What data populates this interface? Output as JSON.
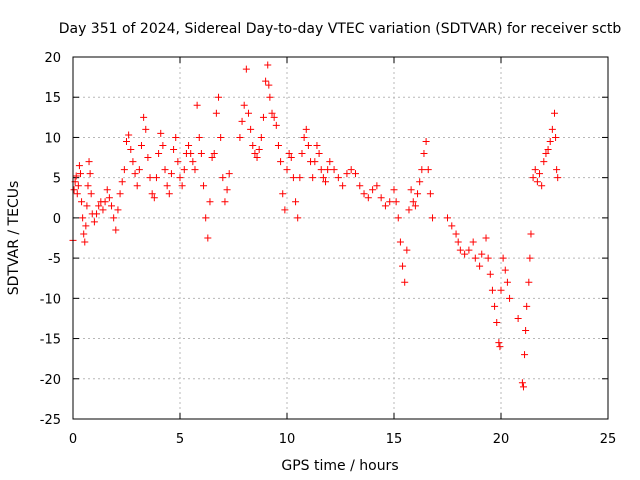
{
  "chart_data": {
    "type": "scatter",
    "title": "Day 351 of 2024, Sidereal Day-to-day VTEC variation (SDTVAR) for receiver sctb",
    "xlabel": "GPS time / hours",
    "ylabel": "SDTVAR / TECUs",
    "xlim": [
      0,
      25
    ],
    "ylim": [
      -25,
      20
    ],
    "xticks": [
      0,
      5,
      10,
      15,
      20,
      25
    ],
    "yticks": [
      -25,
      -20,
      -15,
      -10,
      -5,
      0,
      5,
      10,
      15,
      20
    ],
    "grid": true,
    "marker": "plus",
    "series_color": "#ff0000",
    "series": [
      {
        "name": "sctb",
        "points": [
          [
            0.0,
            -2.8
          ],
          [
            0.05,
            3.5
          ],
          [
            0.1,
            4.5
          ],
          [
            0.15,
            5.2
          ],
          [
            0.2,
            3.0
          ],
          [
            0.25,
            4.0
          ],
          [
            0.3,
            6.5
          ],
          [
            0.35,
            5.5
          ],
          [
            0.4,
            2.0
          ],
          [
            0.45,
            0.0
          ],
          [
            0.5,
            -2.0
          ],
          [
            0.55,
            -3.0
          ],
          [
            0.6,
            -1.0
          ],
          [
            0.65,
            1.5
          ],
          [
            0.7,
            4.0
          ],
          [
            0.75,
            7.0
          ],
          [
            0.8,
            5.5
          ],
          [
            0.85,
            3.0
          ],
          [
            0.9,
            0.5
          ],
          [
            1.0,
            -0.5
          ],
          [
            1.1,
            0.5
          ],
          [
            1.2,
            1.5
          ],
          [
            1.3,
            2.0
          ],
          [
            1.4,
            1.0
          ],
          [
            1.5,
            2.0
          ],
          [
            1.6,
            3.5
          ],
          [
            1.7,
            2.5
          ],
          [
            1.8,
            1.5
          ],
          [
            1.9,
            0.0
          ],
          [
            2.0,
            -1.5
          ],
          [
            2.1,
            1.0
          ],
          [
            2.2,
            3.0
          ],
          [
            2.3,
            4.5
          ],
          [
            2.4,
            6.0
          ],
          [
            2.5,
            9.5
          ],
          [
            2.6,
            10.3
          ],
          [
            2.7,
            8.5
          ],
          [
            2.8,
            7.0
          ],
          [
            2.9,
            5.5
          ],
          [
            3.0,
            4.0
          ],
          [
            3.1,
            6.0
          ],
          [
            3.2,
            9.0
          ],
          [
            3.3,
            12.5
          ],
          [
            3.4,
            11.0
          ],
          [
            3.5,
            7.5
          ],
          [
            3.6,
            5.0
          ],
          [
            3.7,
            3.0
          ],
          [
            3.8,
            2.5
          ],
          [
            3.9,
            5.0
          ],
          [
            4.0,
            8.0
          ],
          [
            4.1,
            10.5
          ],
          [
            4.2,
            9.0
          ],
          [
            4.3,
            6.0
          ],
          [
            4.4,
            4.0
          ],
          [
            4.5,
            3.0
          ],
          [
            4.6,
            5.5
          ],
          [
            4.7,
            8.5
          ],
          [
            4.8,
            10.0
          ],
          [
            4.9,
            7.0
          ],
          [
            5.0,
            5.0
          ],
          [
            5.1,
            4.0
          ],
          [
            5.2,
            6.0
          ],
          [
            5.3,
            8.0
          ],
          [
            5.4,
            9.0
          ],
          [
            5.5,
            8.0
          ],
          [
            5.6,
            7.0
          ],
          [
            5.7,
            6.0
          ],
          [
            5.8,
            14.0
          ],
          [
            5.9,
            10.0
          ],
          [
            6.0,
            8.0
          ],
          [
            6.1,
            4.0
          ],
          [
            6.2,
            0.0
          ],
          [
            6.3,
            -2.5
          ],
          [
            6.4,
            2.0
          ],
          [
            6.5,
            7.5
          ],
          [
            6.6,
            8.0
          ],
          [
            6.7,
            13.0
          ],
          [
            6.8,
            15.0
          ],
          [
            6.9,
            10.0
          ],
          [
            7.0,
            5.0
          ],
          [
            7.1,
            2.0
          ],
          [
            7.2,
            3.5
          ],
          [
            7.3,
            5.5
          ],
          [
            7.8,
            10.0
          ],
          [
            7.9,
            12.0
          ],
          [
            8.0,
            14.0
          ],
          [
            8.1,
            18.5
          ],
          [
            8.2,
            13.0
          ],
          [
            8.3,
            11.0
          ],
          [
            8.4,
            9.0
          ],
          [
            8.5,
            8.0
          ],
          [
            8.6,
            7.5
          ],
          [
            8.7,
            8.5
          ],
          [
            8.8,
            10.0
          ],
          [
            8.9,
            12.5
          ],
          [
            9.0,
            17.0
          ],
          [
            9.1,
            19.0
          ],
          [
            9.15,
            16.5
          ],
          [
            9.2,
            15.0
          ],
          [
            9.3,
            13.0
          ],
          [
            9.4,
            12.5
          ],
          [
            9.5,
            11.5
          ],
          [
            9.6,
            9.0
          ],
          [
            9.7,
            7.0
          ],
          [
            9.8,
            3.0
          ],
          [
            9.9,
            1.0
          ],
          [
            10.0,
            6.0
          ],
          [
            10.1,
            8.0
          ],
          [
            10.2,
            7.5
          ],
          [
            10.3,
            5.0
          ],
          [
            10.4,
            2.0
          ],
          [
            10.5,
            0.0
          ],
          [
            10.6,
            5.0
          ],
          [
            10.7,
            8.0
          ],
          [
            10.8,
            10.0
          ],
          [
            10.9,
            11.0
          ],
          [
            11.0,
            9.0
          ],
          [
            11.1,
            7.0
          ],
          [
            11.2,
            5.0
          ],
          [
            11.3,
            7.0
          ],
          [
            11.4,
            9.0
          ],
          [
            11.5,
            8.0
          ],
          [
            11.6,
            6.0
          ],
          [
            11.7,
            5.0
          ],
          [
            11.8,
            4.5
          ],
          [
            11.9,
            6.0
          ],
          [
            12.0,
            7.0
          ],
          [
            12.2,
            6.0
          ],
          [
            12.4,
            5.0
          ],
          [
            12.6,
            4.0
          ],
          [
            12.8,
            5.5
          ],
          [
            13.0,
            6.0
          ],
          [
            13.2,
            5.5
          ],
          [
            13.4,
            4.0
          ],
          [
            13.6,
            3.0
          ],
          [
            13.8,
            2.5
          ],
          [
            14.0,
            3.5
          ],
          [
            14.2,
            4.0
          ],
          [
            14.4,
            2.5
          ],
          [
            14.6,
            1.5
          ],
          [
            14.8,
            2.0
          ],
          [
            15.0,
            3.5
          ],
          [
            15.1,
            2.0
          ],
          [
            15.2,
            0.0
          ],
          [
            15.3,
            -3.0
          ],
          [
            15.4,
            -6.0
          ],
          [
            15.5,
            -8.0
          ],
          [
            15.6,
            -4.0
          ],
          [
            15.7,
            1.0
          ],
          [
            15.8,
            3.5
          ],
          [
            15.9,
            2.0
          ],
          [
            16.0,
            1.5
          ],
          [
            16.1,
            3.0
          ],
          [
            16.2,
            4.5
          ],
          [
            16.3,
            6.0
          ],
          [
            16.4,
            8.0
          ],
          [
            16.5,
            9.5
          ],
          [
            16.6,
            6.0
          ],
          [
            16.7,
            3.0
          ],
          [
            16.8,
            0.0
          ],
          [
            17.5,
            0.0
          ],
          [
            17.7,
            -1.0
          ],
          [
            17.9,
            -2.0
          ],
          [
            18.0,
            -3.0
          ],
          [
            18.1,
            -4.0
          ],
          [
            18.3,
            -4.5
          ],
          [
            18.5,
            -4.0
          ],
          [
            18.7,
            -3.0
          ],
          [
            18.8,
            -5.0
          ],
          [
            19.0,
            -6.0
          ],
          [
            19.1,
            -4.5
          ],
          [
            19.3,
            -2.5
          ],
          [
            19.4,
            -5.0
          ],
          [
            19.5,
            -7.0
          ],
          [
            19.6,
            -9.0
          ],
          [
            19.7,
            -11.0
          ],
          [
            19.8,
            -13.0
          ],
          [
            19.9,
            -15.5
          ],
          [
            19.95,
            -16.0
          ],
          [
            20.0,
            -9.0
          ],
          [
            20.1,
            -5.0
          ],
          [
            20.2,
            -6.5
          ],
          [
            20.3,
            -8.0
          ],
          [
            20.4,
            -10.0
          ],
          [
            20.8,
            -12.5
          ],
          [
            21.0,
            -20.5
          ],
          [
            21.05,
            -21.0
          ],
          [
            21.1,
            -17.0
          ],
          [
            21.15,
            -14.0
          ],
          [
            21.2,
            -11.0
          ],
          [
            21.3,
            -8.0
          ],
          [
            21.35,
            -5.0
          ],
          [
            21.4,
            -2.0
          ],
          [
            21.5,
            5.0
          ],
          [
            21.6,
            6.0
          ],
          [
            21.7,
            4.5
          ],
          [
            21.8,
            5.5
          ],
          [
            21.9,
            4.0
          ],
          [
            22.0,
            7.0
          ],
          [
            22.1,
            8.0
          ],
          [
            22.2,
            8.5
          ],
          [
            22.3,
            9.5
          ],
          [
            22.4,
            11.0
          ],
          [
            22.5,
            13.0
          ],
          [
            22.55,
            10.0
          ],
          [
            22.6,
            6.0
          ],
          [
            22.65,
            5.0
          ]
        ]
      }
    ]
  }
}
